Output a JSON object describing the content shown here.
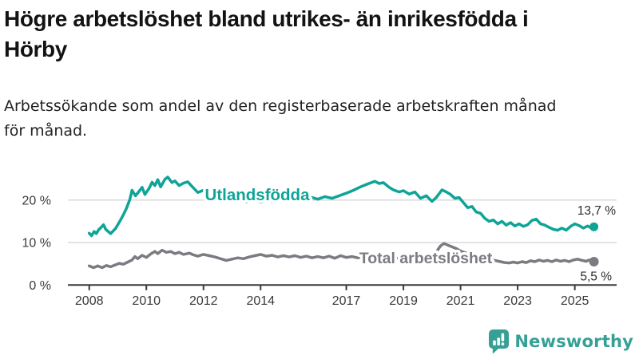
{
  "header": {
    "title_lines": [
      "Högre arbetslöshet bland utrikes- än inrikesfödda i",
      "Hörby"
    ],
    "subtitle_lines": [
      "Arbetssökande som andel av den registerbaserade arbetskraften månad",
      "för månad."
    ]
  },
  "chart_data": {
    "type": "line",
    "title": "Högre arbetslöshet bland utrikes- än inrikesfödda i Hörby",
    "subtitle": "Arbetssökande som andel av den registerbaserade arbetskraften månad för månad.",
    "unit": "%",
    "xlim": [
      2008,
      2025.67
    ],
    "ylim": [
      0,
      27
    ],
    "grid": "horizontal",
    "x_ticks": [
      {
        "value": 2008,
        "label": "2008"
      },
      {
        "value": 2010,
        "label": "2010"
      },
      {
        "value": 2012,
        "label": "2012"
      },
      {
        "value": 2014,
        "label": "2014"
      },
      {
        "value": 2017,
        "label": "2017"
      },
      {
        "value": 2019,
        "label": "2019"
      },
      {
        "value": 2021,
        "label": "2021"
      },
      {
        "value": 2023,
        "label": "2023"
      },
      {
        "value": 2025,
        "label": "2025"
      }
    ],
    "y_ticks": [
      {
        "value": 0,
        "label": "0 %"
      },
      {
        "value": 10,
        "label": "10 %"
      },
      {
        "value": 20,
        "label": "20 %"
      }
    ],
    "series": [
      {
        "name": "Utlandsfödda",
        "color": "#0FA497",
        "end_value": 13.7,
        "end_label": "13,7 %",
        "points": [
          [
            2008.0,
            12.2
          ],
          [
            2008.08,
            11.6
          ],
          [
            2008.17,
            12.6
          ],
          [
            2008.25,
            12.1
          ],
          [
            2008.33,
            13.0
          ],
          [
            2008.42,
            13.6
          ],
          [
            2008.5,
            14.2
          ],
          [
            2008.58,
            13.1
          ],
          [
            2008.75,
            12.1
          ],
          [
            2008.92,
            13.3
          ],
          [
            2009.08,
            15.1
          ],
          [
            2009.2,
            16.6
          ],
          [
            2009.3,
            18.0
          ],
          [
            2009.42,
            20.1
          ],
          [
            2009.5,
            22.3
          ],
          [
            2009.62,
            21.0
          ],
          [
            2009.75,
            22.1
          ],
          [
            2009.85,
            23.0
          ],
          [
            2009.95,
            21.3
          ],
          [
            2010.1,
            22.8
          ],
          [
            2010.2,
            24.2
          ],
          [
            2010.3,
            23.4
          ],
          [
            2010.4,
            24.8
          ],
          [
            2010.5,
            23.1
          ],
          [
            2010.65,
            24.9
          ],
          [
            2010.75,
            25.4
          ],
          [
            2010.9,
            24.1
          ],
          [
            2011.0,
            24.5
          ],
          [
            2011.15,
            23.4
          ],
          [
            2011.3,
            24.0
          ],
          [
            2011.45,
            24.3
          ],
          [
            2011.6,
            23.2
          ],
          [
            2011.8,
            21.8
          ],
          [
            2012.0,
            22.3
          ],
          [
            2012.2,
            21.0
          ],
          [
            2012.4,
            21.9
          ],
          [
            2012.6,
            20.3
          ],
          [
            2012.9,
            19.8
          ],
          [
            2013.1,
            21.0
          ],
          [
            2013.3,
            20.2
          ],
          [
            2013.5,
            19.6
          ],
          [
            2013.75,
            20.2
          ],
          [
            2014.0,
            19.5
          ],
          [
            2014.25,
            20.1
          ],
          [
            2014.5,
            19.6
          ],
          [
            2014.75,
            20.4
          ],
          [
            2015.0,
            19.8
          ],
          [
            2015.25,
            20.5
          ],
          [
            2015.5,
            20.0
          ],
          [
            2015.75,
            20.7
          ],
          [
            2016.0,
            20.2
          ],
          [
            2016.25,
            20.8
          ],
          [
            2016.5,
            20.4
          ],
          [
            2016.75,
            21.0
          ],
          [
            2017.0,
            21.6
          ],
          [
            2017.25,
            22.3
          ],
          [
            2017.5,
            23.1
          ],
          [
            2017.75,
            23.8
          ],
          [
            2018.0,
            24.4
          ],
          [
            2018.15,
            23.9
          ],
          [
            2018.3,
            24.1
          ],
          [
            2018.5,
            23.0
          ],
          [
            2018.65,
            22.4
          ],
          [
            2018.85,
            21.9
          ],
          [
            2019.0,
            22.2
          ],
          [
            2019.2,
            21.4
          ],
          [
            2019.4,
            21.9
          ],
          [
            2019.6,
            20.4
          ],
          [
            2019.8,
            21.0
          ],
          [
            2020.0,
            19.7
          ],
          [
            2020.15,
            20.6
          ],
          [
            2020.35,
            22.4
          ],
          [
            2020.5,
            21.9
          ],
          [
            2020.65,
            21.3
          ],
          [
            2020.8,
            20.4
          ],
          [
            2020.95,
            20.6
          ],
          [
            2021.1,
            19.4
          ],
          [
            2021.25,
            18.2
          ],
          [
            2021.4,
            18.5
          ],
          [
            2021.55,
            17.2
          ],
          [
            2021.7,
            16.9
          ],
          [
            2021.85,
            15.7
          ],
          [
            2022.0,
            15.0
          ],
          [
            2022.15,
            15.3
          ],
          [
            2022.3,
            14.4
          ],
          [
            2022.45,
            15.0
          ],
          [
            2022.6,
            14.1
          ],
          [
            2022.75,
            14.7
          ],
          [
            2022.9,
            13.9
          ],
          [
            2023.05,
            14.4
          ],
          [
            2023.2,
            13.8
          ],
          [
            2023.35,
            14.2
          ],
          [
            2023.5,
            15.2
          ],
          [
            2023.65,
            15.5
          ],
          [
            2023.8,
            14.4
          ],
          [
            2023.95,
            14.1
          ],
          [
            2024.1,
            13.6
          ],
          [
            2024.25,
            13.1
          ],
          [
            2024.4,
            12.9
          ],
          [
            2024.55,
            13.4
          ],
          [
            2024.7,
            12.9
          ],
          [
            2024.85,
            13.8
          ],
          [
            2025.0,
            14.4
          ],
          [
            2025.15,
            14.0
          ],
          [
            2025.3,
            13.4
          ],
          [
            2025.45,
            13.9
          ],
          [
            2025.58,
            13.4
          ],
          [
            2025.67,
            13.7
          ]
        ]
      },
      {
        "name": "Total arbetslöshet",
        "color": "#7B7C81",
        "end_value": 5.5,
        "end_label": "5,5 %",
        "points": [
          [
            2008.0,
            4.5
          ],
          [
            2008.15,
            4.1
          ],
          [
            2008.3,
            4.5
          ],
          [
            2008.45,
            4.1
          ],
          [
            2008.6,
            4.6
          ],
          [
            2008.75,
            4.3
          ],
          [
            2008.9,
            4.7
          ],
          [
            2009.05,
            5.1
          ],
          [
            2009.2,
            4.9
          ],
          [
            2009.35,
            5.4
          ],
          [
            2009.5,
            5.9
          ],
          [
            2009.6,
            6.7
          ],
          [
            2009.7,
            6.2
          ],
          [
            2009.85,
            7.0
          ],
          [
            2010.0,
            6.5
          ],
          [
            2010.15,
            7.3
          ],
          [
            2010.3,
            7.9
          ],
          [
            2010.4,
            7.4
          ],
          [
            2010.55,
            8.2
          ],
          [
            2010.7,
            7.7
          ],
          [
            2010.85,
            7.9
          ],
          [
            2011.0,
            7.4
          ],
          [
            2011.15,
            7.7
          ],
          [
            2011.3,
            7.2
          ],
          [
            2011.5,
            7.5
          ],
          [
            2011.65,
            7.1
          ],
          [
            2011.8,
            6.8
          ],
          [
            2012.0,
            7.2
          ],
          [
            2012.2,
            6.9
          ],
          [
            2012.4,
            6.6
          ],
          [
            2012.6,
            6.2
          ],
          [
            2012.8,
            5.8
          ],
          [
            2013.0,
            6.1
          ],
          [
            2013.2,
            6.4
          ],
          [
            2013.4,
            6.2
          ],
          [
            2013.6,
            6.6
          ],
          [
            2013.8,
            6.9
          ],
          [
            2014.0,
            7.2
          ],
          [
            2014.2,
            6.8
          ],
          [
            2014.4,
            7.0
          ],
          [
            2014.6,
            6.6
          ],
          [
            2014.8,
            6.9
          ],
          [
            2015.0,
            6.6
          ],
          [
            2015.2,
            6.9
          ],
          [
            2015.4,
            6.5
          ],
          [
            2015.6,
            6.8
          ],
          [
            2015.8,
            6.4
          ],
          [
            2016.0,
            6.7
          ],
          [
            2016.2,
            6.4
          ],
          [
            2016.4,
            6.8
          ],
          [
            2016.6,
            6.3
          ],
          [
            2016.8,
            6.9
          ],
          [
            2017.0,
            6.5
          ],
          [
            2017.2,
            6.7
          ],
          [
            2017.4,
            6.4
          ],
          [
            2017.6,
            6.6
          ],
          [
            2017.8,
            6.3
          ],
          [
            2018.0,
            6.5
          ],
          [
            2018.2,
            6.2
          ],
          [
            2018.4,
            6.4
          ],
          [
            2018.6,
            6.1
          ],
          [
            2018.8,
            6.3
          ],
          [
            2019.0,
            6.0
          ],
          [
            2019.2,
            6.3
          ],
          [
            2019.4,
            6.1
          ],
          [
            2019.6,
            6.4
          ],
          [
            2019.8,
            6.6
          ],
          [
            2020.0,
            6.8
          ],
          [
            2020.15,
            7.8
          ],
          [
            2020.3,
            9.2
          ],
          [
            2020.42,
            9.8
          ],
          [
            2020.55,
            9.4
          ],
          [
            2020.7,
            9.0
          ],
          [
            2020.85,
            8.6
          ],
          [
            2021.0,
            8.0
          ],
          [
            2021.2,
            7.5
          ],
          [
            2021.4,
            7.1
          ],
          [
            2021.6,
            6.7
          ],
          [
            2021.8,
            6.3
          ],
          [
            2022.0,
            6.0
          ],
          [
            2022.2,
            5.8
          ],
          [
            2022.4,
            5.5
          ],
          [
            2022.55,
            5.3
          ],
          [
            2022.7,
            5.2
          ],
          [
            2022.85,
            5.4
          ],
          [
            2023.0,
            5.2
          ],
          [
            2023.15,
            5.5
          ],
          [
            2023.3,
            5.3
          ],
          [
            2023.45,
            5.7
          ],
          [
            2023.6,
            5.5
          ],
          [
            2023.75,
            5.9
          ],
          [
            2023.9,
            5.6
          ],
          [
            2024.05,
            5.8
          ],
          [
            2024.2,
            5.5
          ],
          [
            2024.35,
            5.9
          ],
          [
            2024.5,
            5.6
          ],
          [
            2024.65,
            5.8
          ],
          [
            2024.8,
            5.5
          ],
          [
            2024.95,
            5.9
          ],
          [
            2025.1,
            6.1
          ],
          [
            2025.25,
            5.8
          ],
          [
            2025.4,
            5.6
          ],
          [
            2025.5,
            5.9
          ],
          [
            2025.6,
            5.7
          ],
          [
            2025.67,
            5.5
          ]
        ]
      }
    ],
    "legend_position": "inline-labels"
  },
  "footer": {
    "brand": "Newsworthy",
    "brand_color": "#37A096",
    "logo_icon": "bar-chart-speech-bubble-icon"
  },
  "colors": {
    "accent_teal": "#0FA497",
    "line_gray": "#7B7C81",
    "gridline": "#DADADA",
    "axis": "#3A3A3A",
    "background": "#FFFFFF"
  }
}
